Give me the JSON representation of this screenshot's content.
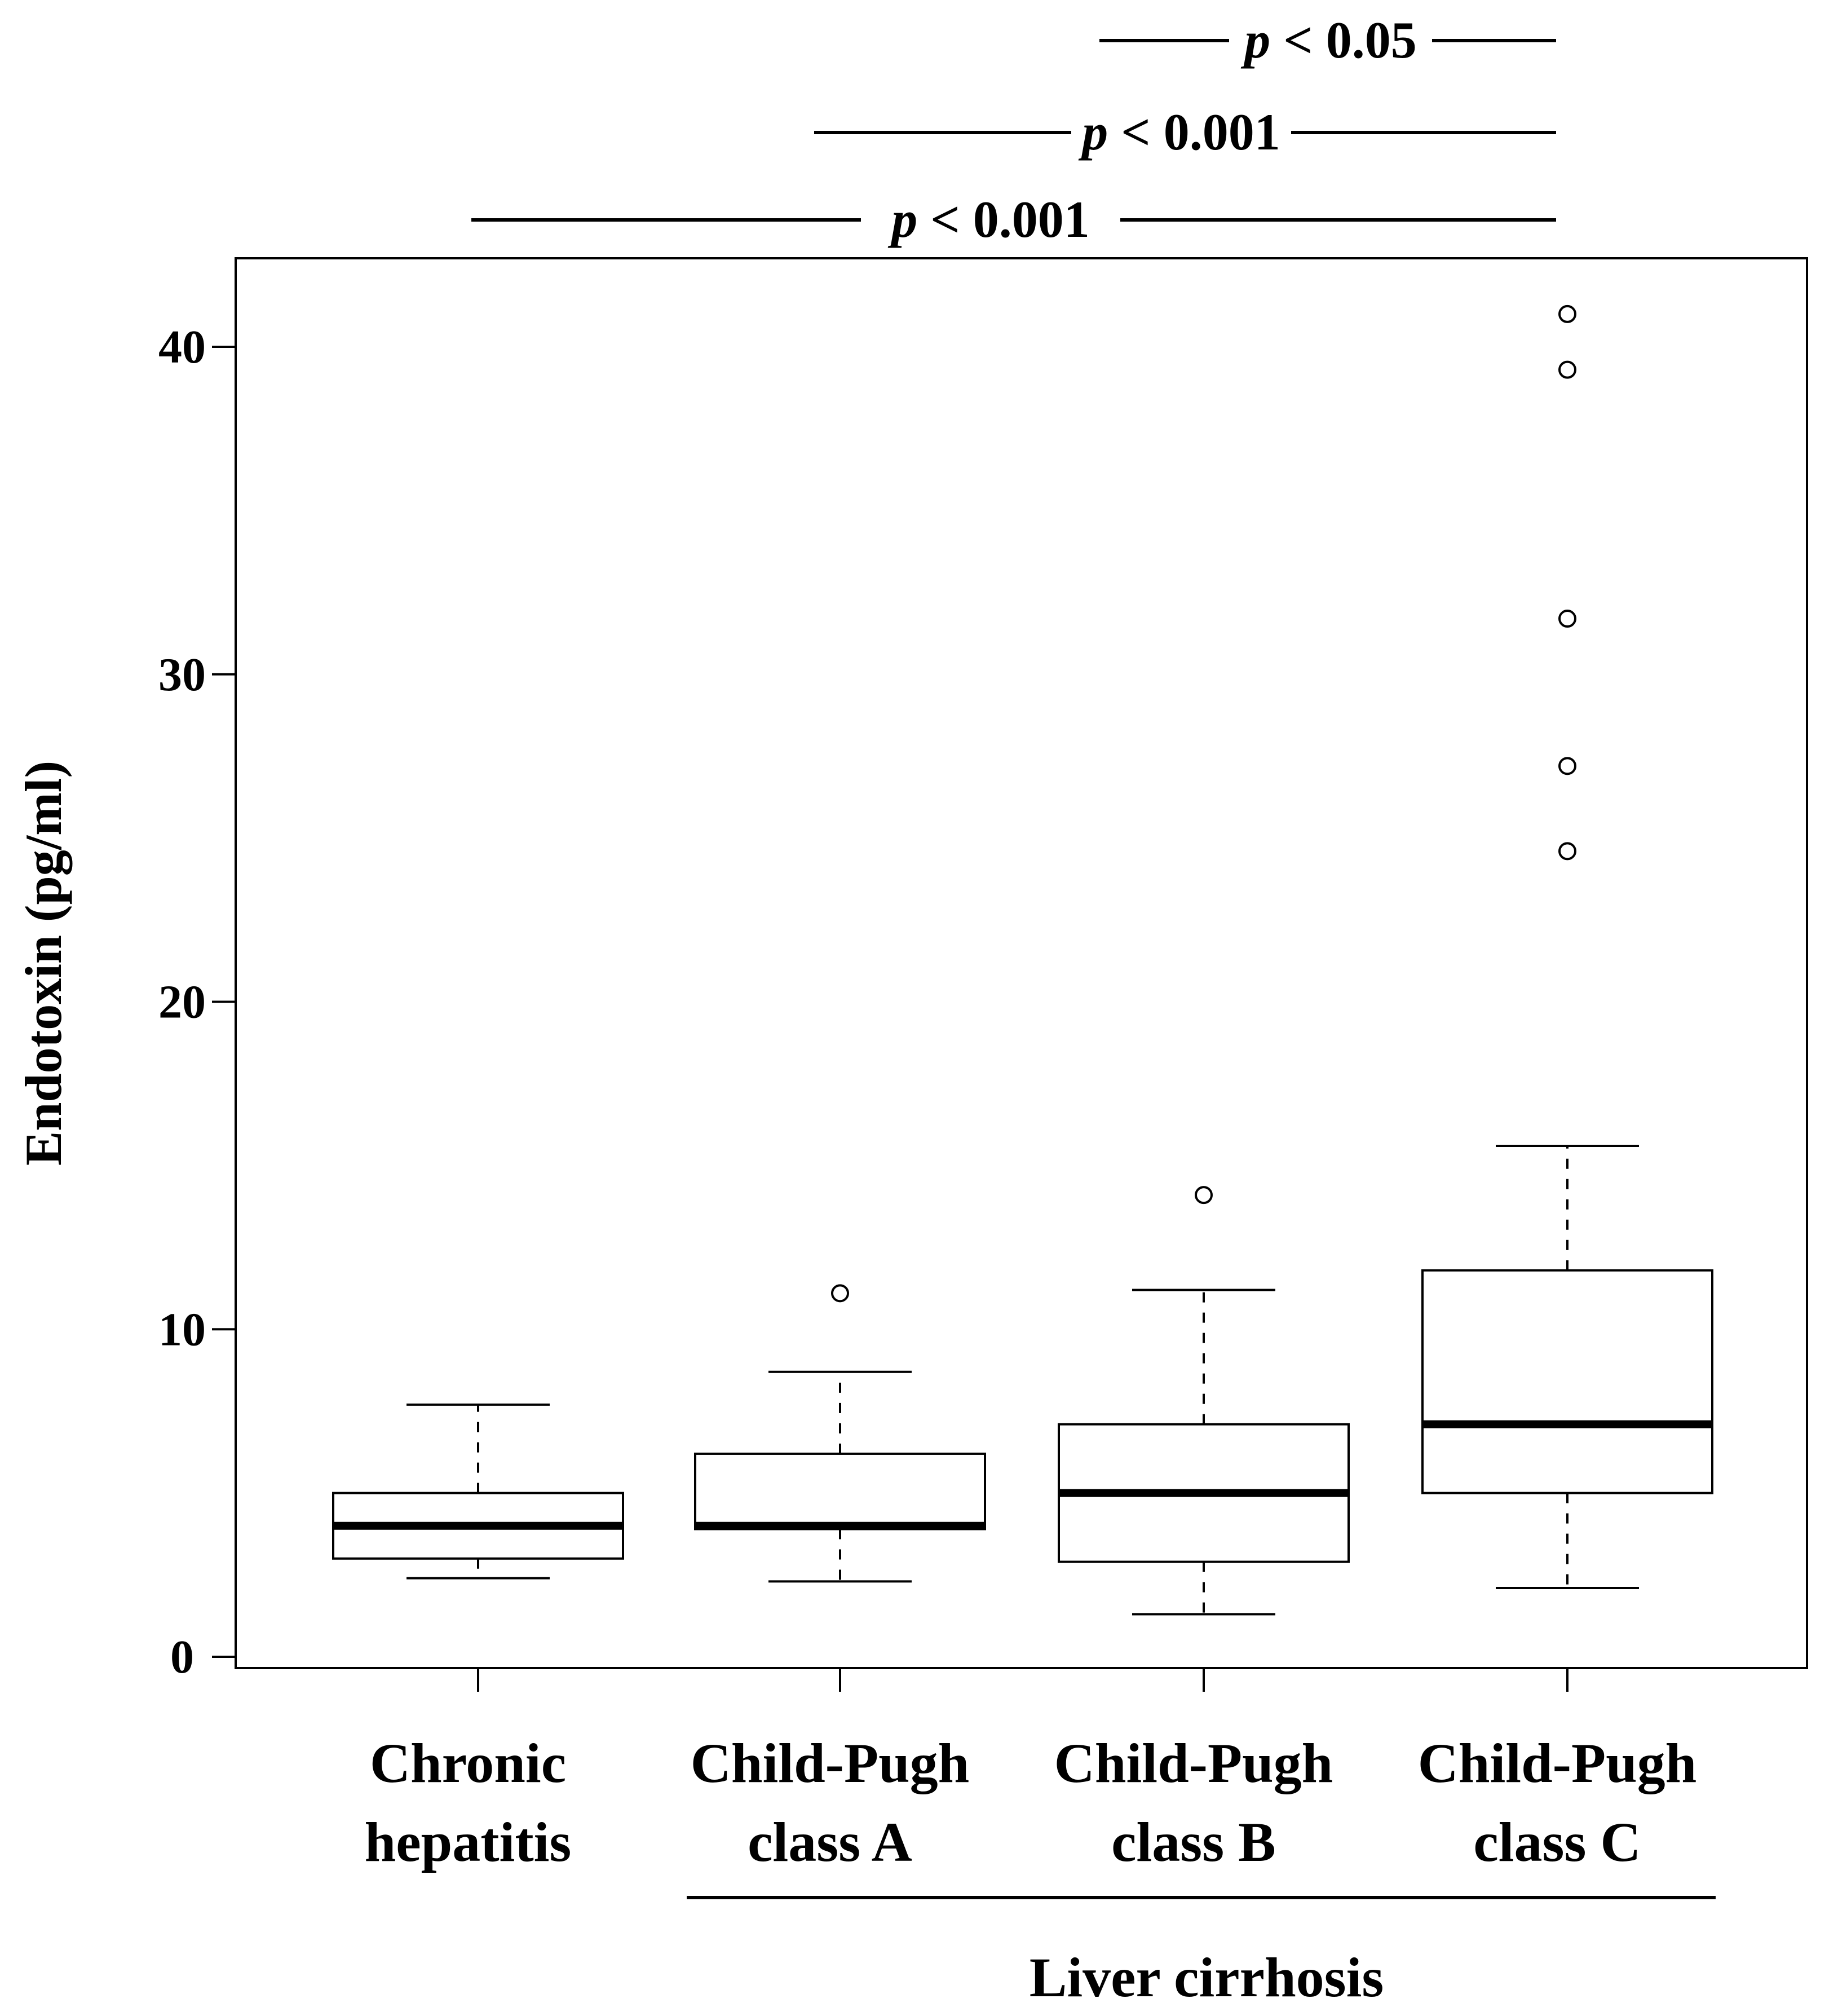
{
  "chart_data": {
    "type": "box",
    "ylabel": "Endotoxin (pg/ml)",
    "ylim": [
      0,
      42
    ],
    "yticks": [
      0,
      10,
      20,
      30,
      40
    ],
    "grid": false,
    "categories": [
      {
        "line1": "Chronic",
        "line2": "hepatitis"
      },
      {
        "line1": "Child-Pugh",
        "line2": "class A"
      },
      {
        "line1": "Child-Pugh",
        "line2": "class B"
      },
      {
        "line1": "Child-Pugh",
        "line2": "class C"
      }
    ],
    "boxes": [
      {
        "whisker_low": 2.4,
        "q1": 3.0,
        "median": 4.0,
        "q3": 5.0,
        "whisker_high": 7.7,
        "outliers": []
      },
      {
        "whisker_low": 2.3,
        "q1": 3.9,
        "median": 4.0,
        "q3": 6.2,
        "whisker_high": 8.7,
        "outliers": [
          11.1
        ]
      },
      {
        "whisker_low": 1.3,
        "q1": 2.9,
        "median": 5.0,
        "q3": 7.1,
        "whisker_high": 11.2,
        "outliers": [
          14.1
        ]
      },
      {
        "whisker_low": 2.1,
        "q1": 5.0,
        "median": 7.1,
        "q3": 11.8,
        "whisker_high": 15.6,
        "outliers": [
          24.6,
          27.2,
          31.7,
          39.3,
          41.0
        ]
      }
    ],
    "significance": [
      {
        "from": 2,
        "to": 3,
        "prefix": "p",
        "text": " < 0.05"
      },
      {
        "from": 1,
        "to": 3,
        "prefix": "p",
        "text": " < 0.001"
      },
      {
        "from": 0,
        "to": 3,
        "prefix": "p",
        "text": " < 0.001"
      }
    ],
    "group_label": {
      "text": "Liver cirrhosis",
      "from": 1,
      "to": 3
    }
  }
}
